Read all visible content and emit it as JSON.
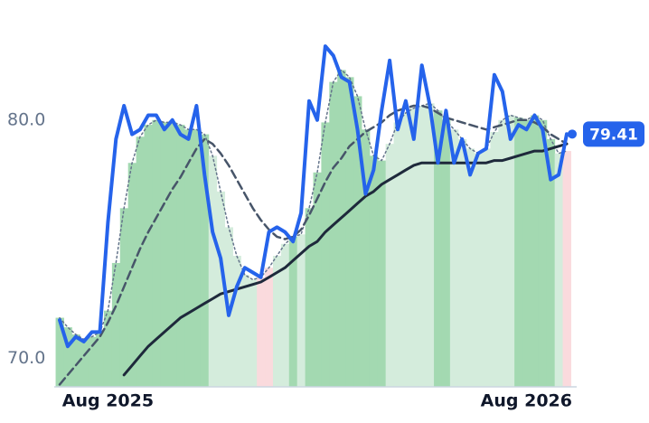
{
  "chart_data": {
    "type": "line",
    "categories": [
      null,
      null,
      null,
      null,
      null,
      null,
      "Aug 2025",
      null,
      null,
      null,
      null,
      null,
      null,
      null,
      null,
      null,
      null,
      null,
      null,
      null,
      null,
      null,
      null,
      null,
      null,
      null,
      null,
      null,
      null,
      null,
      null,
      null,
      null,
      null,
      null,
      null,
      null,
      null,
      null,
      null,
      null,
      null,
      null,
      null,
      null,
      null,
      null,
      null,
      null,
      null,
      null,
      null,
      null,
      null,
      null,
      null,
      null,
      null,
      "Aug 2026",
      null,
      null,
      null,
      null,
      null
    ],
    "ylim": [
      68.8,
      83.9
    ],
    "yticks": [
      {
        "value": 70,
        "label": "70.0"
      },
      {
        "value": 80,
        "label": "80.0"
      }
    ],
    "bars": {
      "values": [
        71.7,
        71.3,
        71.0,
        70.8,
        70.9,
        71.1,
        72.0,
        74.0,
        76.3,
        78.2,
        79.3,
        79.8,
        80.0,
        79.9,
        79.9,
        79.8,
        79.6,
        79.6,
        79.4,
        78.5,
        77.0,
        75.5,
        74.3,
        73.5,
        73.3,
        73.4,
        73.8,
        74.3,
        74.8,
        75.1,
        75.2,
        76.3,
        77.8,
        79.9,
        81.6,
        82.1,
        81.8,
        81.0,
        79.6,
        78.5,
        78.3,
        79.0,
        79.9,
        80.3,
        80.5,
        80.6,
        80.7,
        80.4,
        80.0,
        79.6,
        79.2,
        78.8,
        78.6,
        78.8,
        79.5,
        80.0,
        80.2,
        80.1,
        80.0,
        80.2,
        80.0,
        79.2,
        78.6,
        78.7
      ],
      "colors": [
        "#a3d9b1",
        "#a3d9b1",
        "#a3d9b1",
        "#a3d9b1",
        "#a3d9b1",
        "#a3d9b1",
        "#a3d9b1",
        "#a3d9b1",
        "#a3d9b1",
        "#a3d9b1",
        "#a3d9b1",
        "#a3d9b1",
        "#a3d9b1",
        "#a3d9b1",
        "#a3d9b1",
        "#a3d9b1",
        "#a3d9b1",
        "#a3d9b1",
        "#a3d9b1",
        "#d4ecdc",
        "#d4ecdc",
        "#d4ecdc",
        "#d4ecdc",
        "#d4ecdc",
        "#d4ecdc",
        "#fadadd",
        "#fadadd",
        "#d4ecdc",
        "#d4ecdc",
        "#a3d9b1",
        "#d4ecdc",
        "#a3d9b1",
        "#a3d9b1",
        "#a3d9b1",
        "#a3d9b1",
        "#a3d9b1",
        "#a3d9b1",
        "#a3d9b1",
        "#a3d9b1",
        "#a3d9b1",
        "#a3d9b1",
        "#d4ecdc",
        "#d4ecdc",
        "#d4ecdc",
        "#d4ecdc",
        "#d4ecdc",
        "#d4ecdc",
        "#a3d9b1",
        "#a3d9b1",
        "#d4ecdc",
        "#d4ecdc",
        "#d4ecdc",
        "#d4ecdc",
        "#d4ecdc",
        "#d4ecdc",
        "#d4ecdc",
        "#d4ecdc",
        "#a3d9b1",
        "#a3d9b1",
        "#a3d9b1",
        "#a3d9b1",
        "#a3d9b1",
        "#d4ecdc",
        "#fadadd"
      ]
    },
    "series": [
      {
        "color": "#64748b",
        "width": 1.5,
        "dash": "2 3",
        "values": [
          71.7,
          71.3,
          71.0,
          70.8,
          70.9,
          71.1,
          72.0,
          74.0,
          76.3,
          78.2,
          79.3,
          79.8,
          80.0,
          79.9,
          79.9,
          79.8,
          79.6,
          79.6,
          79.4,
          78.5,
          77.0,
          75.5,
          74.3,
          73.5,
          73.3,
          73.4,
          73.8,
          74.3,
          74.8,
          75.1,
          75.2,
          76.3,
          77.8,
          79.9,
          81.6,
          82.1,
          81.8,
          81.0,
          79.6,
          78.5,
          78.3,
          79.0,
          79.9,
          80.3,
          80.5,
          80.6,
          80.7,
          80.4,
          80.0,
          79.6,
          79.2,
          78.8,
          78.6,
          78.8,
          79.5,
          80.0,
          80.2,
          80.1,
          80.0,
          80.2,
          80.0,
          79.2,
          78.6,
          78.7
        ]
      },
      {
        "color": "#475569",
        "width": 2.5,
        "dash": "9 5",
        "values": [
          68.9,
          69.3,
          69.7,
          70.1,
          70.5,
          70.9,
          71.5,
          72.2,
          73.0,
          73.8,
          74.6,
          75.3,
          75.9,
          76.5,
          77.1,
          77.6,
          78.2,
          78.8,
          79.2,
          79.0,
          78.6,
          78.1,
          77.5,
          76.9,
          76.3,
          75.8,
          75.4,
          75.1,
          75.0,
          75.1,
          75.4,
          76.0,
          76.7,
          77.4,
          78.0,
          78.4,
          78.9,
          79.2,
          79.5,
          79.7,
          79.9,
          80.2,
          80.4,
          80.5,
          80.6,
          80.6,
          80.5,
          80.3,
          80.1,
          80.0,
          79.9,
          79.8,
          79.7,
          79.6,
          79.7,
          79.8,
          79.9,
          80.0,
          80.0,
          79.9,
          79.7,
          79.4,
          79.2,
          79.0
        ]
      },
      {
        "color": "#1e293b",
        "width": 3,
        "dash": "none",
        "values": [
          null,
          null,
          null,
          null,
          null,
          null,
          null,
          null,
          69.3,
          69.7,
          70.1,
          70.5,
          70.8,
          71.1,
          71.4,
          71.7,
          71.9,
          72.1,
          72.3,
          72.5,
          72.7,
          72.8,
          72.9,
          73.0,
          73.1,
          73.2,
          73.4,
          73.6,
          73.8,
          74.1,
          74.4,
          74.7,
          74.9,
          75.3,
          75.6,
          75.9,
          76.2,
          76.5,
          76.8,
          77.0,
          77.3,
          77.5,
          77.7,
          77.9,
          78.1,
          78.2,
          78.2,
          78.2,
          78.2,
          78.2,
          78.2,
          78.2,
          78.2,
          78.2,
          78.3,
          78.3,
          78.4,
          78.5,
          78.6,
          78.7,
          78.7,
          78.8,
          78.9,
          79.0
        ]
      },
      {
        "color": "#2563eb",
        "width": 4,
        "dash": "none",
        "values": [
          71.6,
          70.5,
          70.9,
          70.7,
          71.1,
          71.1,
          75.7,
          79.2,
          80.6,
          79.4,
          79.6,
          80.2,
          80.2,
          79.6,
          80.0,
          79.4,
          79.2,
          80.6,
          77.7,
          75.3,
          74.2,
          71.8,
          73.0,
          73.8,
          73.6,
          73.4,
          75.3,
          75.5,
          75.3,
          74.9,
          76.1,
          80.8,
          80.0,
          83.1,
          82.7,
          81.8,
          81.6,
          79.6,
          76.9,
          77.9,
          80.4,
          82.5,
          79.6,
          80.8,
          79.2,
          82.3,
          80.6,
          78.2,
          80.4,
          78.2,
          79.2,
          77.7,
          78.6,
          78.8,
          81.9,
          81.2,
          79.2,
          79.8,
          79.6,
          80.2,
          79.6,
          77.5,
          77.7,
          79.41
        ]
      }
    ]
  }
}
